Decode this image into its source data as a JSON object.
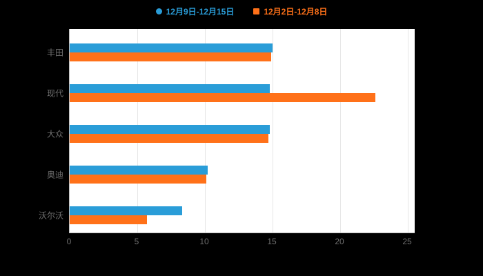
{
  "background_color": "#000000",
  "plot_background_color": "#ffffff",
  "legend": {
    "items": [
      {
        "label": "12月9日-12月15日",
        "color": "#2A9DD8",
        "marker": "circle"
      },
      {
        "label": "12月2日-12月8日",
        "color": "#FF7119",
        "marker": "square"
      }
    ]
  },
  "chart_data": {
    "type": "bar",
    "orientation": "horizontal",
    "title": "",
    "xlabel": "",
    "ylabel": "",
    "categories": [
      "丰田",
      "现代",
      "大众",
      "奥迪",
      "沃尔沃"
    ],
    "series": [
      {
        "name": "12月9日-12月15日",
        "color": "#2A9DD8",
        "values": [
          15.0,
          14.8,
          14.8,
          10.2,
          8.3
        ]
      },
      {
        "name": "12月2日-12月8日",
        "color": "#FF7119",
        "values": [
          14.9,
          22.6,
          14.7,
          10.1,
          5.7
        ]
      }
    ],
    "xlim": [
      0,
      25
    ],
    "xticks": [
      0,
      5,
      10,
      15,
      20,
      25
    ],
    "grid": true,
    "legend_position": "top"
  }
}
